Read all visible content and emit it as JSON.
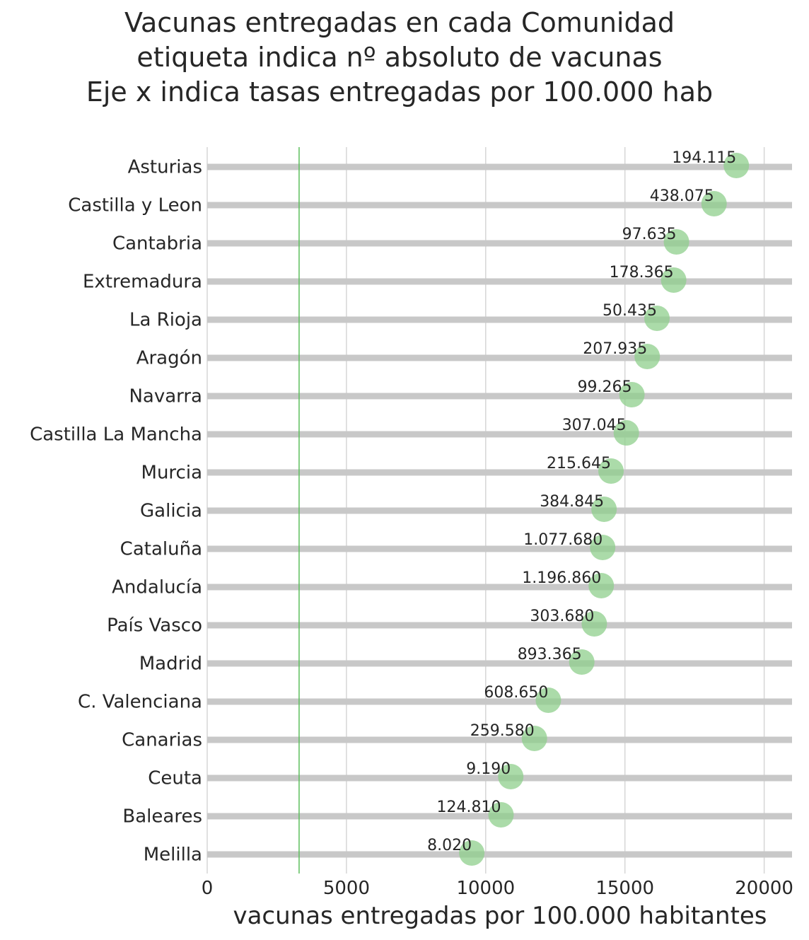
{
  "chart_data": {
    "type": "scatter",
    "title_lines": [
      "Vacunas entregadas en cada Comunidad",
      "etiqueta indica nº absoluto de vacunas",
      "Eje x indica tasas entregadas por 100.000 hab"
    ],
    "xlabel": "vacunas entregadas por 100.000 habitantes",
    "ylabel": "",
    "xlim": [
      0,
      21000
    ],
    "xticks": [
      0,
      5000,
      10000,
      15000,
      20000
    ],
    "xtick_labels": [
      "0",
      "5000",
      "10000",
      "15000",
      "20000"
    ],
    "grid": true,
    "reference_line_x": 3300,
    "colors": {
      "point": "#8fcf8c",
      "reference_line": "#5cbf5c",
      "lollipop_bar": "#c8c8c8",
      "grid": "#d6d6d6",
      "text": "#262626"
    },
    "points": [
      {
        "region": "Asturias",
        "rate": 19000,
        "label": "194.115"
      },
      {
        "region": "Castilla y Leon",
        "rate": 18200,
        "label": "438.075"
      },
      {
        "region": "Cantabria",
        "rate": 16850,
        "label": "97.635"
      },
      {
        "region": "Extremadura",
        "rate": 16750,
        "label": "178.365"
      },
      {
        "region": "La Rioja",
        "rate": 16150,
        "label": "50.435"
      },
      {
        "region": "Aragón",
        "rate": 15800,
        "label": "207.935"
      },
      {
        "region": "Navarra",
        "rate": 15250,
        "label": "99.265"
      },
      {
        "region": "Castilla La Mancha",
        "rate": 15050,
        "label": "307.045"
      },
      {
        "region": "Murcia",
        "rate": 14500,
        "label": "215.645"
      },
      {
        "region": "Galicia",
        "rate": 14250,
        "label": "384.845"
      },
      {
        "region": "Cataluña",
        "rate": 14200,
        "label": "1.077.680"
      },
      {
        "region": "Andalucía",
        "rate": 14150,
        "label": "1.196.860"
      },
      {
        "region": "País Vasco",
        "rate": 13900,
        "label": "303.680"
      },
      {
        "region": "Madrid",
        "rate": 13450,
        "label": "893.365"
      },
      {
        "region": "C. Valenciana",
        "rate": 12250,
        "label": "608.650"
      },
      {
        "region": "Canarias",
        "rate": 11750,
        "label": "259.580"
      },
      {
        "region": "Ceuta",
        "rate": 10900,
        "label": "9.190"
      },
      {
        "region": "Baleares",
        "rate": 10550,
        "label": "124.810"
      },
      {
        "region": "Melilla",
        "rate": 9500,
        "label": "8.020"
      }
    ]
  }
}
